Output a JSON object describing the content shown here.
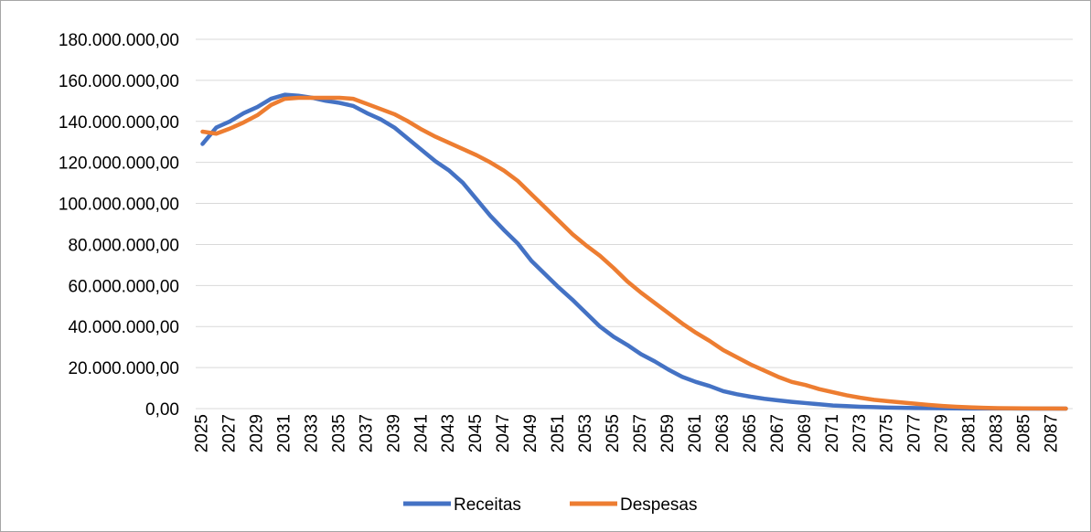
{
  "chart_data": {
    "type": "line",
    "ylim": [
      0,
      180000000
    ],
    "y_ticks": [
      0,
      20000000,
      40000000,
      60000000,
      80000000,
      100000000,
      120000000,
      140000000,
      160000000,
      180000000
    ],
    "y_tick_labels": [
      "0,00",
      "20.000.000,00",
      "40.000.000,00",
      "60.000.000,00",
      "80.000.000,00",
      "100.000.000,00",
      "120.000.000,00",
      "140.000.000,00",
      "160.000.000,00",
      "180.000.000,00"
    ],
    "x": [
      2025,
      2026,
      2027,
      2028,
      2029,
      2030,
      2031,
      2032,
      2033,
      2034,
      2035,
      2036,
      2037,
      2038,
      2039,
      2040,
      2041,
      2042,
      2043,
      2044,
      2045,
      2046,
      2047,
      2048,
      2049,
      2050,
      2051,
      2052,
      2053,
      2054,
      2055,
      2056,
      2057,
      2058,
      2059,
      2060,
      2061,
      2062,
      2063,
      2064,
      2065,
      2066,
      2067,
      2068,
      2069,
      2070,
      2071,
      2072,
      2073,
      2074,
      2075,
      2076,
      2077,
      2078,
      2079,
      2080,
      2081,
      2082,
      2083,
      2084,
      2085,
      2086,
      2087,
      2088
    ],
    "x_tick_labels": [
      "2025",
      "2027",
      "2029",
      "2031",
      "2033",
      "2035",
      "2037",
      "2039",
      "2041",
      "2043",
      "2045",
      "2047",
      "2049",
      "2051",
      "2053",
      "2055",
      "2057",
      "2059",
      "2061",
      "2063",
      "2065",
      "2067",
      "2069",
      "2071",
      "2073",
      "2075",
      "2077",
      "2079",
      "2081",
      "2083",
      "2085",
      "2087"
    ],
    "series": [
      {
        "name": "Receitas",
        "color": "#4472c4",
        "values": [
          129000000,
          137000000,
          140000000,
          144000000,
          147000000,
          151000000,
          153000000,
          152500000,
          151500000,
          150000000,
          149000000,
          147500000,
          144000000,
          141000000,
          137000000,
          131500000,
          126000000,
          120500000,
          116000000,
          110000000,
          102000000,
          94000000,
          87000000,
          80500000,
          72000000,
          65500000,
          59000000,
          53000000,
          46500000,
          40000000,
          35000000,
          31000000,
          26500000,
          23000000,
          19000000,
          15500000,
          13000000,
          11000000,
          8500000,
          7000000,
          5800000,
          4800000,
          4000000,
          3300000,
          2700000,
          2100000,
          1500000,
          1200000,
          900000,
          700000,
          500000,
          400000,
          300000,
          200000,
          150000,
          100000,
          80000,
          50000,
          40000,
          30000,
          20000,
          15000,
          10000,
          8000
        ]
      },
      {
        "name": "Despesas",
        "color": "#ed7d31",
        "values": [
          135000000,
          134000000,
          136500000,
          139500000,
          143000000,
          148000000,
          151000000,
          151500000,
          151500000,
          151500000,
          151500000,
          151000000,
          148500000,
          146000000,
          143500000,
          140000000,
          136000000,
          132500000,
          129500000,
          126500000,
          123500000,
          120000000,
          116000000,
          111000000,
          104500000,
          98000000,
          91500000,
          85000000,
          79500000,
          74500000,
          68500000,
          62000000,
          56500000,
          51500000,
          46500000,
          41500000,
          37000000,
          33000000,
          28500000,
          25000000,
          21500000,
          18500000,
          15500000,
          13000000,
          11500000,
          9500000,
          8000000,
          6500000,
          5300000,
          4300000,
          3600000,
          3000000,
          2400000,
          1800000,
          1300000,
          900000,
          600000,
          400000,
          250000,
          150000,
          100000,
          60000,
          30000,
          15000
        ]
      }
    ],
    "legend_position": "bottom",
    "grid": true
  }
}
